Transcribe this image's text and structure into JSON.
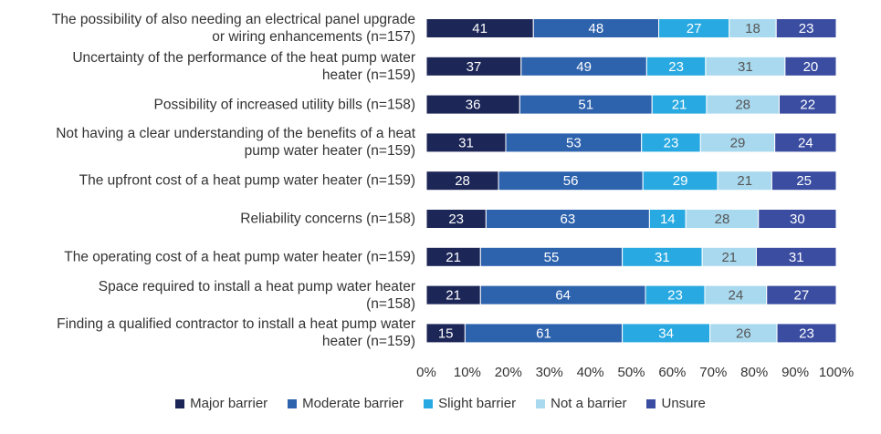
{
  "chart_data": {
    "type": "bar",
    "orientation": "horizontal",
    "stacking": "percent",
    "categories": [
      "The possibility of also needing an electrical panel upgrade\nor wiring enhancements (n=157)",
      "Uncertainty of the performance of the heat pump water\nheater (n=159)",
      "Possibility of increased utility bills (n=158)",
      "Not having a clear understanding of the benefits of a heat\npump water heater   (n=159)",
      "The upfront cost of a heat pump water heater (n=159)",
      "Reliability concerns (n=158)",
      "The operating cost of a heat pump water heater (n=159)",
      "Space required to install a heat pump water heater\n(n=158)",
      "Finding a qualified contractor to install a heat pump water\nheater (n=159)"
    ],
    "series": [
      {
        "name": "Major barrier",
        "color": "#1c2657",
        "values": [
          41,
          37,
          36,
          31,
          28,
          23,
          21,
          21,
          15
        ]
      },
      {
        "name": "Moderate barrier",
        "color": "#2d62ad",
        "values": [
          48,
          49,
          51,
          53,
          56,
          63,
          55,
          64,
          61
        ]
      },
      {
        "name": "Slight barrier",
        "color": "#29a9e1",
        "values": [
          27,
          23,
          21,
          23,
          29,
          14,
          31,
          23,
          34
        ]
      },
      {
        "name": "Not a barrier",
        "color": "#a9d9ef",
        "values": [
          18,
          31,
          28,
          29,
          21,
          28,
          21,
          24,
          26
        ]
      },
      {
        "name": "Unsure",
        "color": "#3a4da1",
        "values": [
          23,
          20,
          22,
          24,
          25,
          30,
          31,
          27,
          23
        ]
      }
    ],
    "xlim": [
      0,
      100
    ],
    "xticks": [
      {
        "value": 0,
        "label": "0%"
      },
      {
        "value": 10,
        "label": "10%"
      },
      {
        "value": 20,
        "label": "20%"
      },
      {
        "value": 30,
        "label": "30%"
      },
      {
        "value": 40,
        "label": "40%"
      },
      {
        "value": 50,
        "label": "50%"
      },
      {
        "value": 60,
        "label": "60%"
      },
      {
        "value": 70,
        "label": "70%"
      },
      {
        "value": 80,
        "label": "80%"
      },
      {
        "value": 90,
        "label": "90%"
      },
      {
        "value": 100,
        "label": "100%"
      }
    ],
    "grid": false,
    "legend": "bottom"
  }
}
